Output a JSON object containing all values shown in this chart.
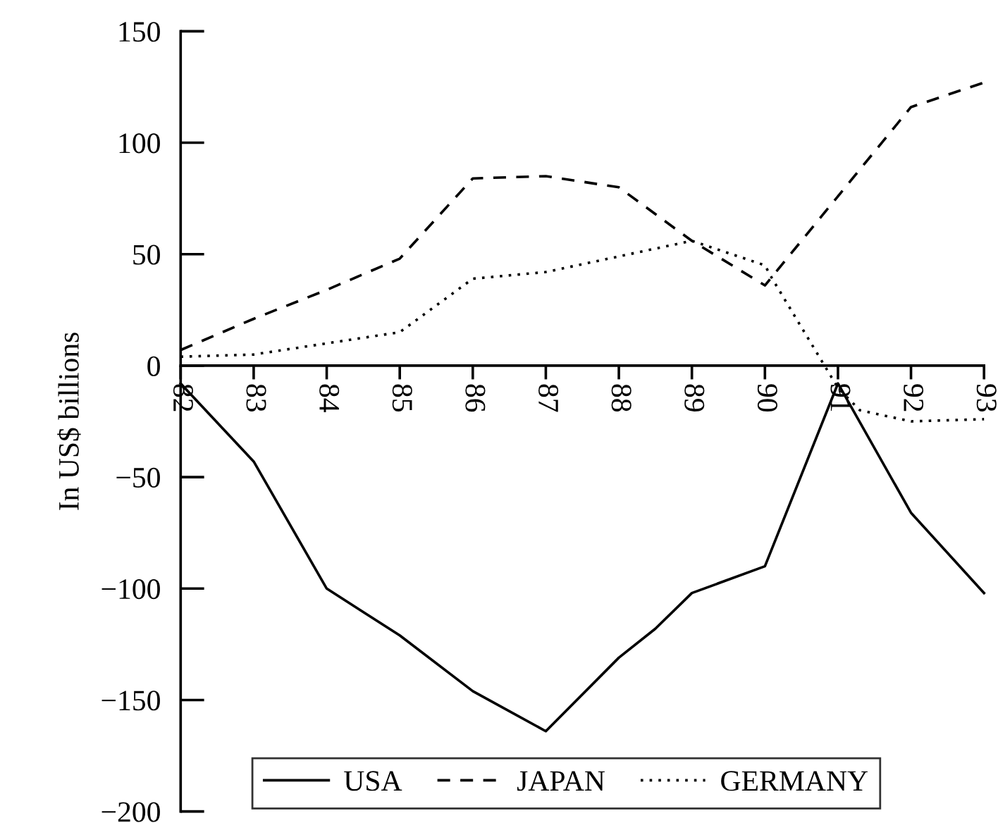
{
  "chart_data": {
    "type": "line",
    "ylabel": "In US$ billions",
    "xlim": [
      82,
      93
    ],
    "xticks": [
      82,
      83,
      84,
      85,
      86,
      87,
      88,
      89,
      90,
      91,
      92,
      93
    ],
    "ylim": [
      -200,
      150
    ],
    "yticks": [
      {
        "value": -200,
        "label": "−200"
      },
      {
        "value": -150,
        "label": "−150"
      },
      {
        "value": -100,
        "label": "−100"
      },
      {
        "value": -50,
        "label": "−50"
      },
      0,
      50,
      100,
      150
    ],
    "grid": false,
    "legend": "bottom",
    "marker": "none",
    "series": [
      {
        "name": "USA",
        "color": "#000000",
        "line_style": "solid",
        "x": [
          82,
          83,
          84,
          85,
          86,
          87,
          88,
          88.5,
          89,
          90,
          91,
          92,
          93
        ],
        "values": [
          -8,
          -43,
          -100,
          -121,
          -146,
          -164,
          -131,
          -118,
          -102,
          -90,
          -8,
          -66,
          -102
        ]
      },
      {
        "name": "JAPAN",
        "color": "#000000",
        "line_style": "dashed",
        "x": [
          82,
          83,
          84,
          85,
          86,
          87,
          88,
          89,
          90,
          92,
          93
        ],
        "values": [
          7,
          21,
          34,
          48,
          84,
          85,
          80,
          56,
          36,
          116,
          127
        ]
      },
      {
        "name": "GERMANY",
        "color": "#000000",
        "line_style": "dotted",
        "x": [
          82,
          83,
          84,
          85,
          86,
          87,
          88,
          89,
          90,
          90.1,
          91,
          91.3,
          92,
          93
        ],
        "values": [
          4,
          5,
          10,
          15,
          39,
          42,
          49,
          56,
          45,
          39,
          -10,
          -20,
          -25,
          -24
        ]
      }
    ]
  }
}
